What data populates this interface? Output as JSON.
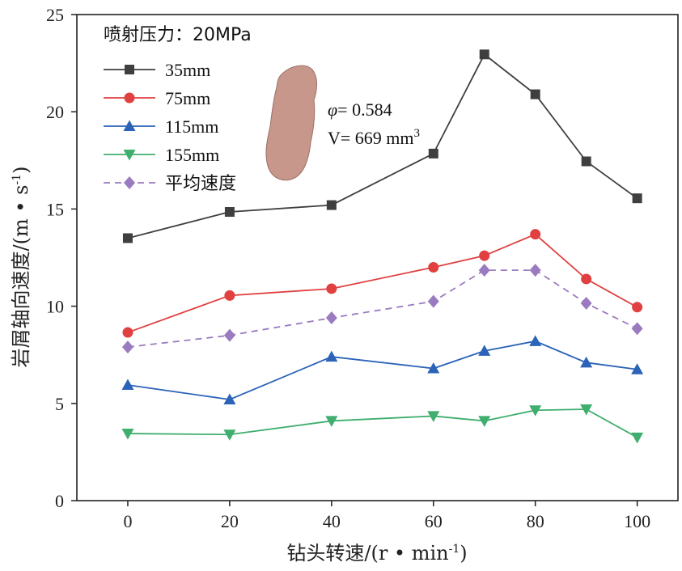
{
  "chart_data": {
    "type": "line",
    "title": "",
    "xlabel": "钻头转速/(r·min⁻¹)",
    "xlabel_parts": {
      "text": "钻头转速/(r • min",
      "sup": "-1",
      "end": ")"
    },
    "ylabel_parts": {
      "text": "岩屑轴向速度/(m • s",
      "sup": "-1",
      "end": ")"
    },
    "xlim": [
      -10,
      108
    ],
    "ylim": [
      0,
      25
    ],
    "xticks": [
      0,
      20,
      40,
      60,
      80,
      100
    ],
    "yticks": [
      0,
      5,
      10,
      15,
      20,
      25
    ],
    "grid": false,
    "legend_position": "top-left",
    "legend_title": "喷射压力：20MPa",
    "x": [
      0,
      20,
      40,
      60,
      70,
      80,
      90,
      100
    ],
    "series": [
      {
        "name": "35mm",
        "color": "#3f3f3f",
        "marker": "square",
        "dashed": false,
        "values": [
          13.5,
          14.85,
          15.2,
          17.85,
          22.95,
          20.9,
          17.45,
          15.55
        ]
      },
      {
        "name": "75mm",
        "color": "#e04040",
        "marker": "circle",
        "dashed": false,
        "values": [
          8.65,
          10.55,
          10.9,
          12.0,
          12.6,
          13.7,
          11.4,
          9.95
        ]
      },
      {
        "name": "115mm",
        "color": "#2b63b8",
        "marker": "triangle-up",
        "dashed": false,
        "values": [
          5.95,
          5.2,
          7.4,
          6.8,
          7.7,
          8.2,
          7.1,
          6.75
        ]
      },
      {
        "name": "155mm",
        "color": "#3fae6e",
        "marker": "triangle-down",
        "dashed": false,
        "values": [
          3.45,
          3.4,
          4.1,
          4.35,
          4.1,
          4.65,
          4.7,
          3.25
        ]
      },
      {
        "name": "平均速度",
        "color": "#9b7bc0",
        "marker": "diamond",
        "dashed": true,
        "values": [
          7.9,
          8.5,
          9.4,
          10.25,
          11.85,
          11.85,
          10.15,
          8.85
        ]
      }
    ],
    "annotation": {
      "phi_symbol": "φ",
      "phi_text": "= 0.584",
      "volume_text": "V= 669 mm",
      "volume_sup": "3"
    },
    "rock_color": "#c8978c"
  }
}
